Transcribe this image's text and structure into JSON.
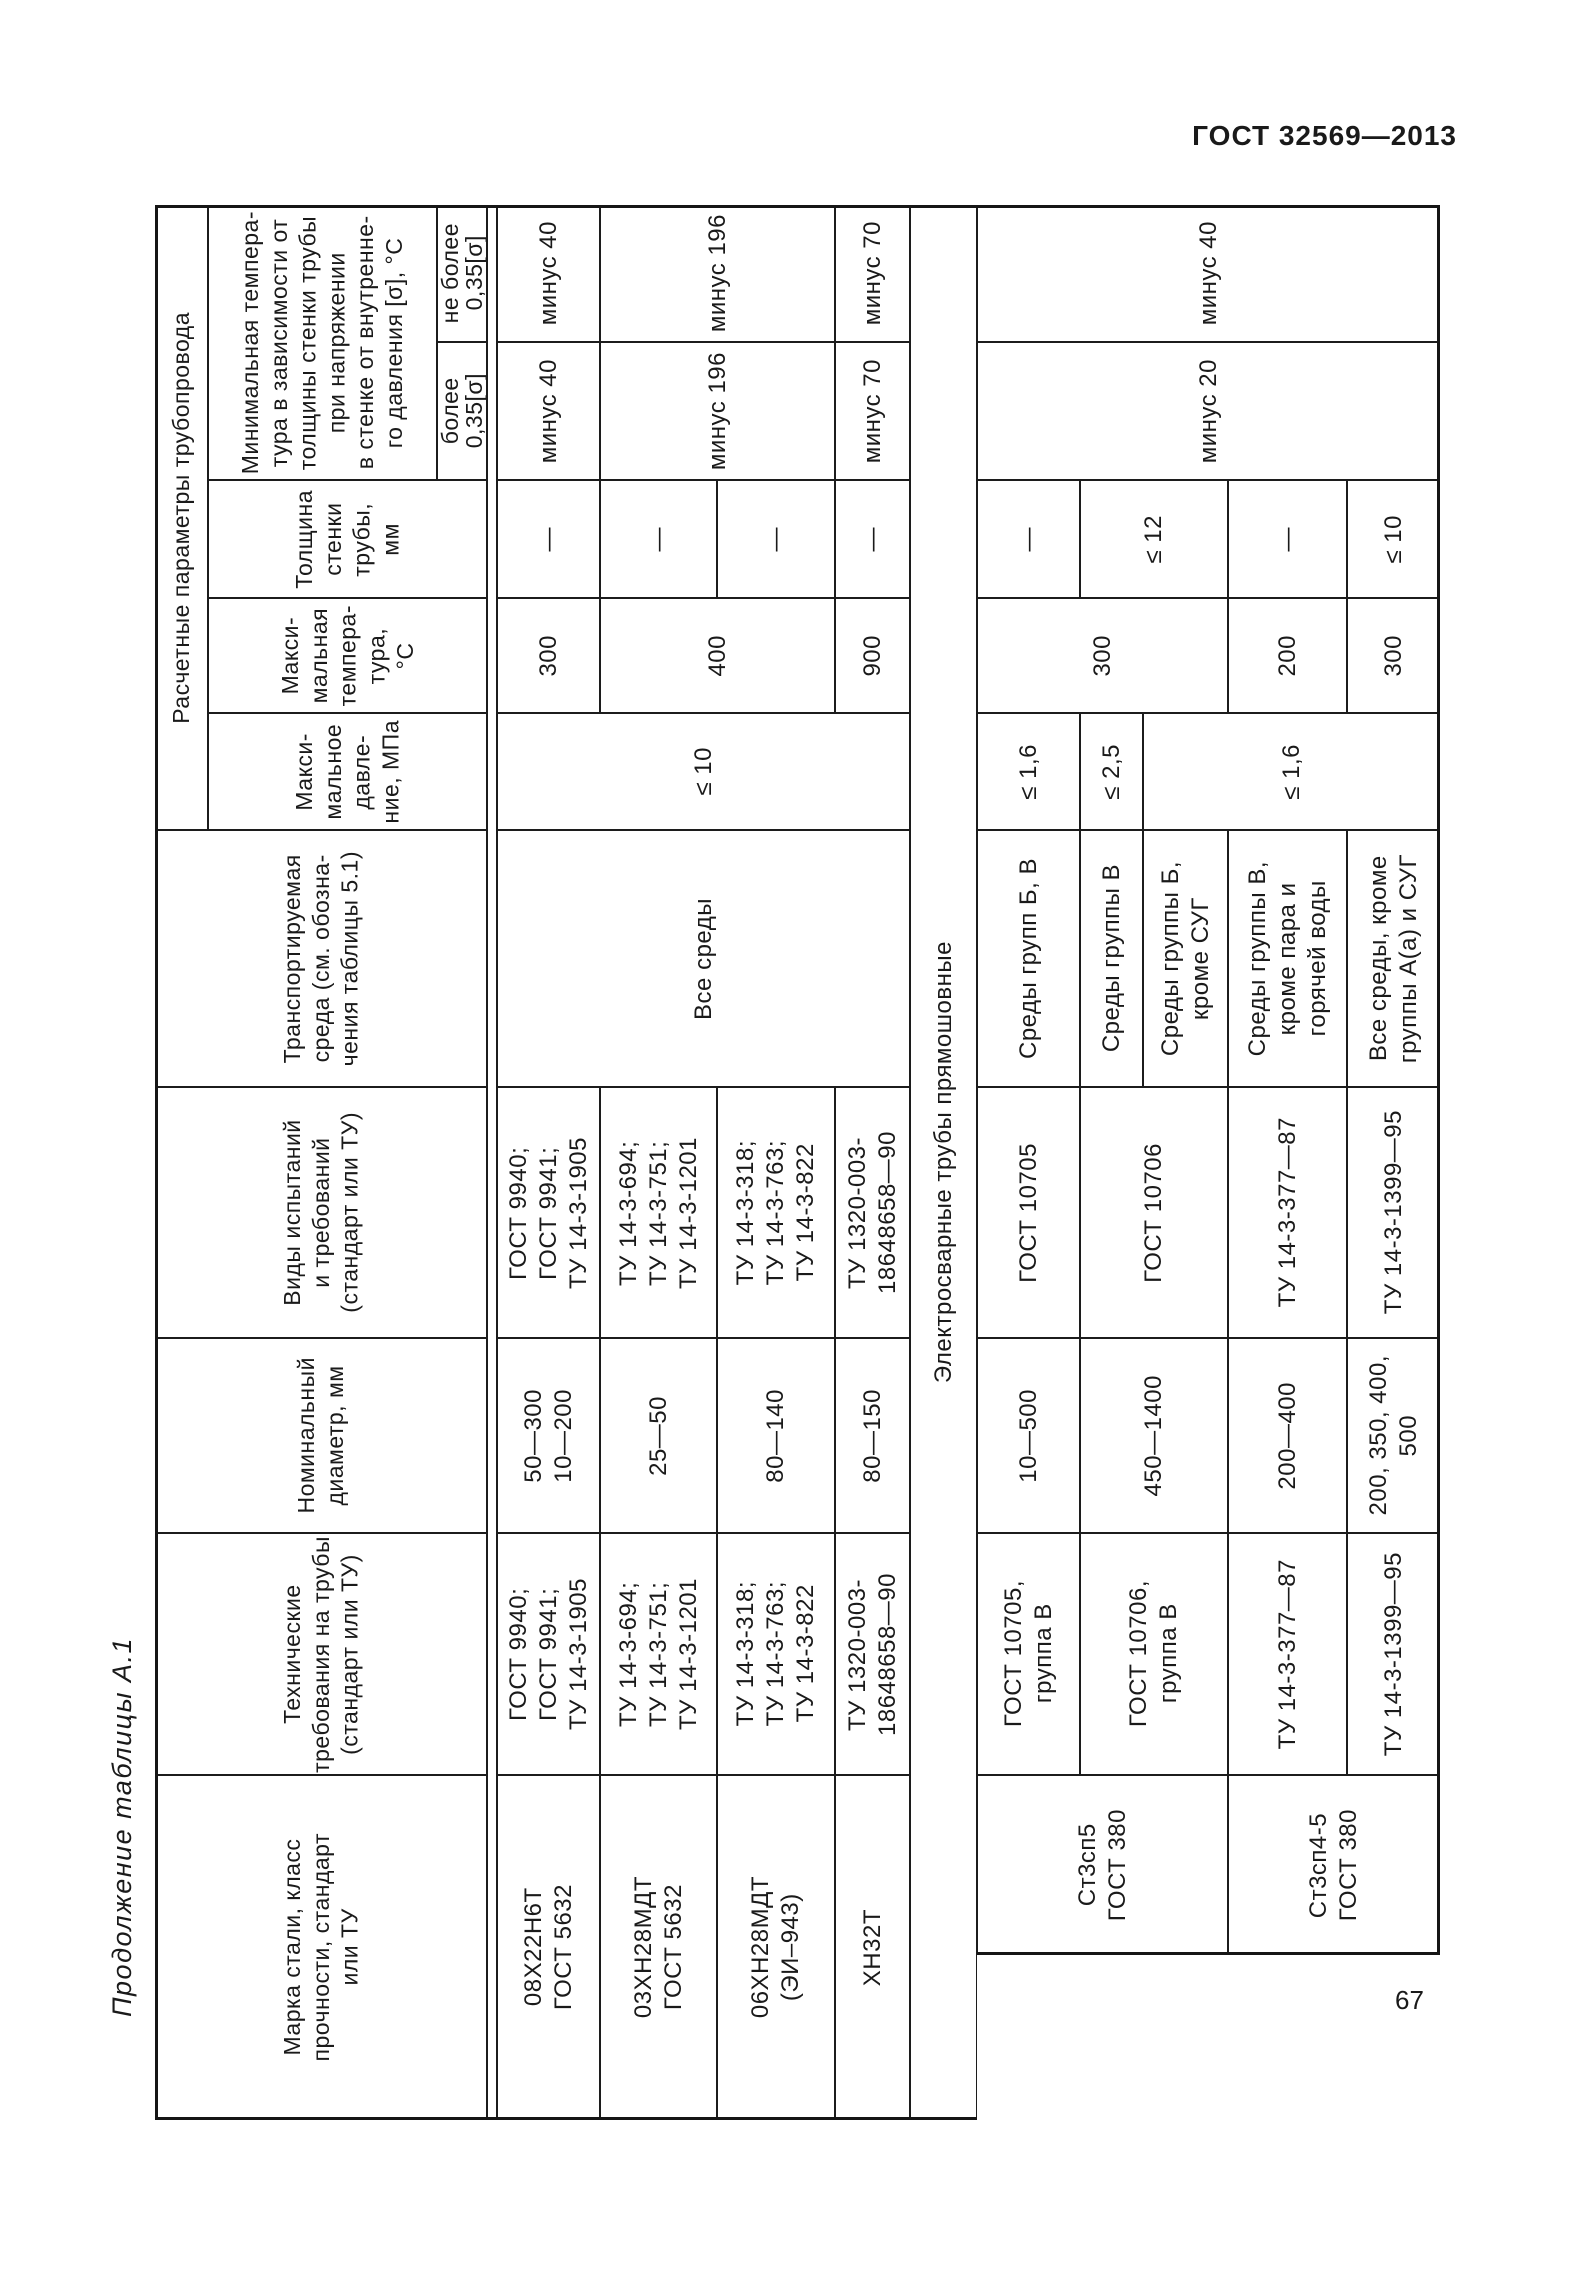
{
  "page": {
    "header_right": "ГОСТ 32569—2013",
    "page_number": "67"
  },
  "table": {
    "caption": "Продолжение таблицы А.1",
    "divider": "Электросварные трубы прямошовные",
    "headers": {
      "calc_group": "Расчетные параметры трубопровода",
      "min_temp": "Минимальная темпера-\nтура в зависимости от\nтолщины стенки трубы\nпри напряжении\nв стенке от внутренне-\nго давления [σ], °С",
      "not_over": "не более\n0,35[σ]",
      "over": "более\n0,35[σ]",
      "wall": "Толщина\nстенки\nтрубы,\nмм",
      "temperature": "Макси-\nмальная\nтемпера-\nтура,\n°С",
      "pressure": "Макси-\nмальное\nдавле-\nние, МПа",
      "media": "Транспортируемая\nсреда (см. обозна-\nчения таблицы 5.1)",
      "tests": "Виды испытаний\nи требований\n(стандарт или ТУ)",
      "diameter": "Номинальный\nдиаметр, мм",
      "tech": "Технические\nтребования на трубы\n(стандарт или ТУ)",
      "marka": "Марка стали, класс\nпрочности, стандарт\nили ТУ"
    },
    "cells": {
      "a1_not_over": "минус 40",
      "a1_over": "минус 40",
      "a1_wall": "—",
      "a1_temp": "300",
      "a_pressure": "≤ 10",
      "a_media": "Все среды",
      "a1_tests": "ГОСТ 9940;\nГОСТ 9941;\nТУ 14-3-1905",
      "a1_diam": "50—300\n10—200",
      "a1_tech": "ГОСТ 9940;\nГОСТ 9941;\nТУ 14-3-1905",
      "a1_marka": "08Х22Н6Т\nГОСТ 5632",
      "a23_not_over": "минус 196",
      "a23_over": "минус 196",
      "a2_wall": "—",
      "a23_temp": "400",
      "a2_tests": "ТУ 14-3-694;\nТУ 14-3-751;\nТУ 14-3-1201",
      "a2_diam": "25—50",
      "a2_tech": "ТУ 14-3-694;\nТУ 14-3-751;\nТУ 14-3-1201",
      "a2_marka": "03ХН28МДТ\nГОСТ 5632",
      "a3_wall": "—",
      "a3_tests": "ТУ 14-3-318;\nТУ 14-3-763;\nТУ 14-3-822",
      "a3_diam": "80—140",
      "a3_tech": "ТУ 14-3-318;\nТУ 14-3-763;\nТУ 14-3-822",
      "a3_marka": "06ХН28МДТ\n(ЭИ–943)",
      "a4_not_over": "минус 70",
      "a4_over": "минус 70",
      "a4_wall": "—",
      "a4_temp": "900",
      "a4_tests": "ТУ 1320-003-\n18648658—90",
      "a4_diam": "80—150",
      "a4_tech": "ТУ 1320-003-\n18648658—90",
      "a4_marka": "ХН32Т",
      "b_not_over": "минус 40",
      "b_over": "минус 20",
      "b5_wall": "—",
      "b67_wall": "≤ 12",
      "b8_wall": "—",
      "b9_wall": "≤ 10",
      "b567_temp": "300",
      "b8_temp": "200",
      "b9_temp": "300",
      "b5_pres": "≤ 1,6",
      "b6_pres": "≤ 2,5",
      "b789_pres": "≤ 1,6",
      "b5_media": "Среды групп Б, В",
      "b6_media": "Среды группы В",
      "b7_media": "Среды группы Б,\nкроме СУГ",
      "b8_media": "Среды группы В,\nкроме пара и\nгорячей воды",
      "b9_media": "Все среды, кроме\nгруппы А(а) и СУГ",
      "b5_tests": "ГОСТ 10705",
      "b67_tests": "ГОСТ 10706",
      "b8_tests": "ТУ 14-3-377—87",
      "b9_tests": "ТУ 14-3-1399—95",
      "b5_diam": "10—500",
      "b67_diam": "450—1400",
      "b8_diam": "200—400",
      "b9_diam": "200, 350, 400,\n500",
      "b5_tech": "ГОСТ 10705,\nгруппа В",
      "b67_tech": "ГОСТ 10706,\nгруппа В",
      "b8_tech": "ТУ 14-3-377—87",
      "b9_tech": "ТУ 14-3-1399—95",
      "b567_marka": "Ст3сп5\nГОСТ 380",
      "b89_marka": "Ст3сп4-5\nГОСТ 380"
    }
  }
}
